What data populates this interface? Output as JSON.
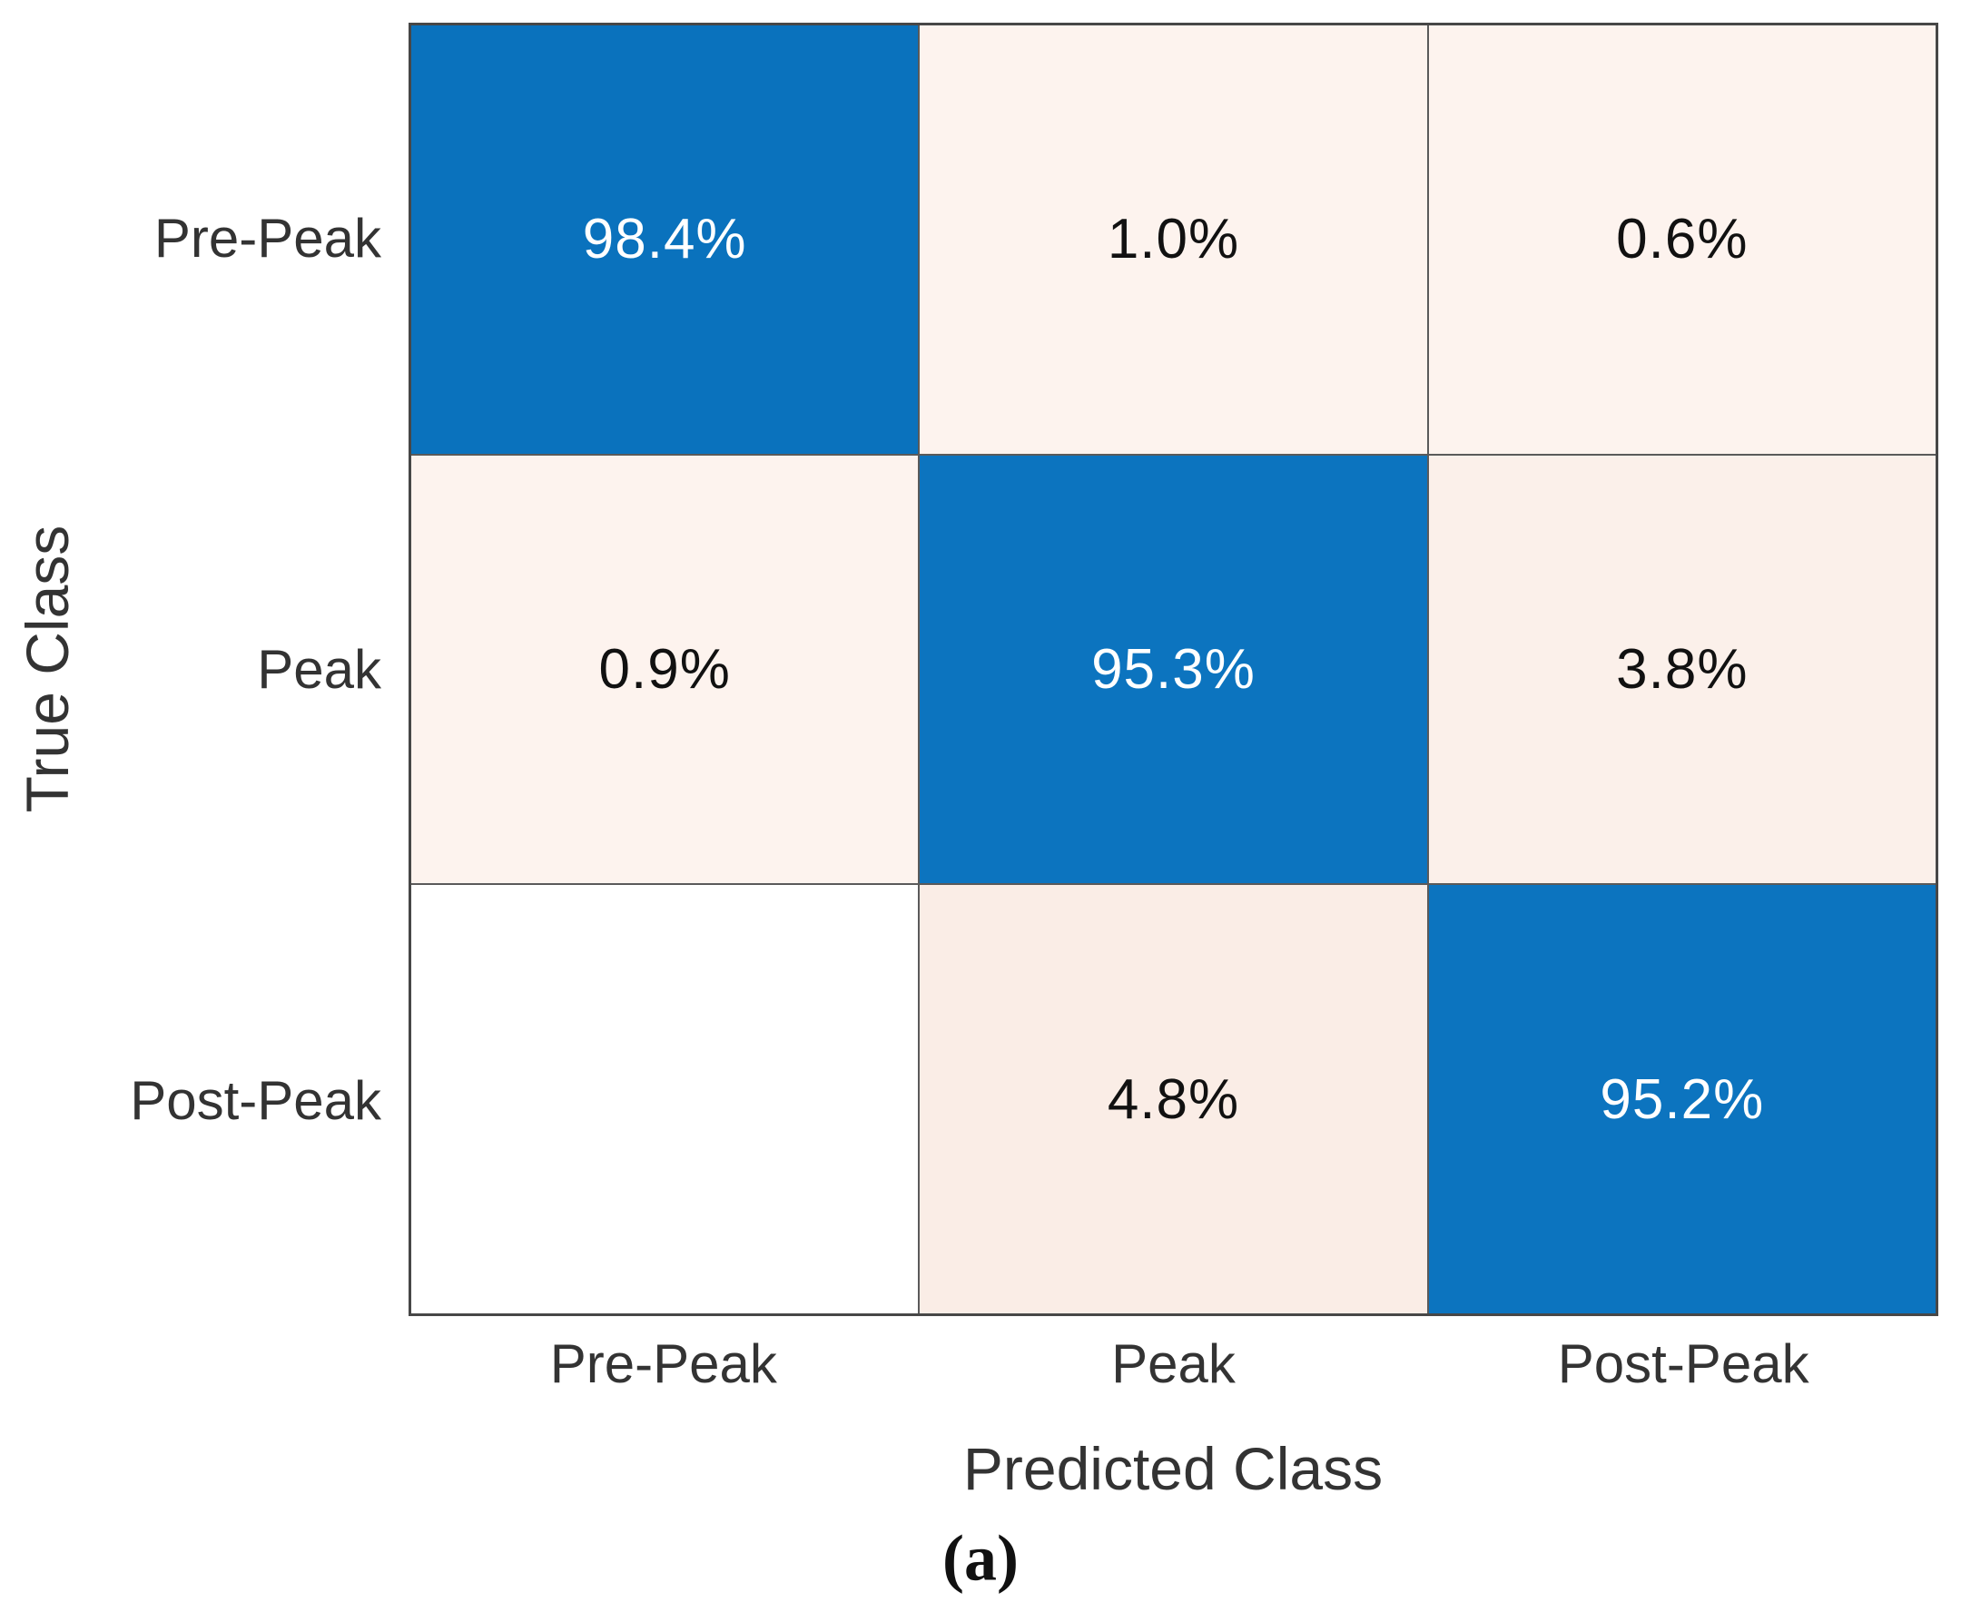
{
  "figure": {
    "caption": "(a)"
  },
  "axes": {
    "x_label": "Predicted Class",
    "y_label": "True Class",
    "x_ticks": [
      "Pre-Peak",
      "Peak",
      "Post-Peak"
    ],
    "y_ticks": [
      "Pre-Peak",
      "Peak",
      "Post-Peak"
    ]
  },
  "colors": {
    "diagonal_blue": "#0a72bd",
    "off_diagonal_tint": "#fdf3ee",
    "zero_cell": "#ffffff",
    "grid_line": "#5a5a5a",
    "outer_border": "#474747",
    "label_text": "#333333",
    "cell_text_on_blue": "#ffffff",
    "cell_text_on_light": "#111111"
  },
  "chart_data": {
    "type": "heatmap",
    "subtype": "confusion-matrix",
    "title": "",
    "xlabel": "Predicted Class",
    "ylabel": "True Class",
    "x_categories": [
      "Pre-Peak",
      "Peak",
      "Post-Peak"
    ],
    "y_categories": [
      "Pre-Peak",
      "Peak",
      "Post-Peak"
    ],
    "values_percent": [
      [
        98.4,
        1.0,
        0.6
      ],
      [
        0.9,
        95.3,
        3.8
      ],
      [
        null,
        4.8,
        95.2
      ]
    ],
    "cell_labels": [
      [
        "98.4%",
        "1.0%",
        "0.6%"
      ],
      [
        "0.9%",
        "95.3%",
        "3.8%"
      ],
      [
        "",
        "4.8%",
        "95.2%"
      ]
    ],
    "normalization": "row-normalized (percent of true class)",
    "legend": "none",
    "grid": "on"
  },
  "cells": [
    [
      {
        "label": "98.4%",
        "bg": "#0a72bd",
        "fg": "#ffffff"
      },
      {
        "label": "1.0%",
        "bg": "#fdf3ee",
        "fg": "#111111"
      },
      {
        "label": "0.6%",
        "bg": "#fdf3ee",
        "fg": "#111111"
      }
    ],
    [
      {
        "label": "0.9%",
        "bg": "#fdf3ee",
        "fg": "#111111"
      },
      {
        "label": "95.3%",
        "bg": "#0c74bf",
        "fg": "#ffffff"
      },
      {
        "label": "3.8%",
        "bg": "#fbf0ea",
        "fg": "#111111"
      }
    ],
    [
      {
        "label": "",
        "bg": "#ffffff",
        "fg": "#111111"
      },
      {
        "label": "4.8%",
        "bg": "#faede6",
        "fg": "#111111"
      },
      {
        "label": "95.2%",
        "bg": "#0c74bf",
        "fg": "#ffffff"
      }
    ]
  ]
}
